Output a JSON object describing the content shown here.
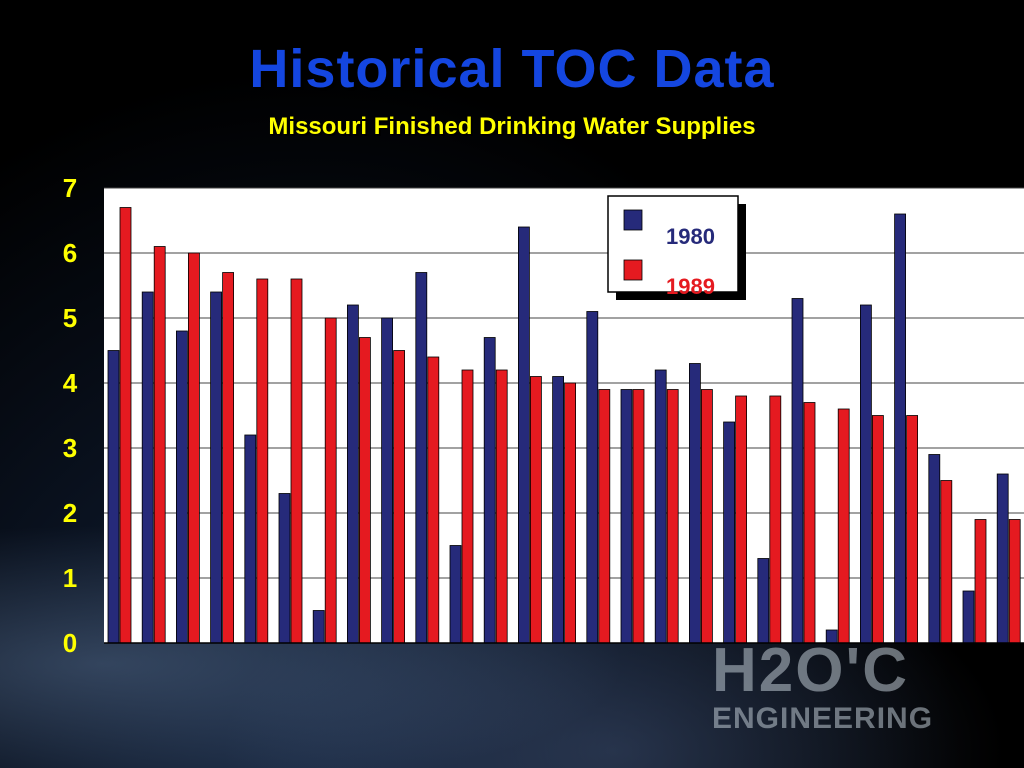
{
  "slide": {
    "title": "Historical TOC Data",
    "subtitle": "Missouri Finished Drinking Water Supplies"
  },
  "logo": {
    "mark": "H2O'C",
    "name": "ENGINEERING"
  },
  "chart_data": {
    "type": "bar",
    "ylabel": "",
    "xlabel": "",
    "ylim": [
      0,
      7
    ],
    "y_ticks": [
      "0",
      "1",
      "2",
      "3",
      "4",
      "5",
      "6",
      "7"
    ],
    "grid": true,
    "legend_placement": "top-center",
    "categories": [
      "",
      "",
      "",
      "",
      "",
      "",
      "",
      "",
      "",
      "",
      "",
      "",
      "",
      "",
      "",
      "",
      "",
      "",
      "",
      "",
      "",
      "",
      "",
      "",
      "",
      "",
      "",
      "",
      ""
    ],
    "series": [
      {
        "name": "1980",
        "color": "#262a7a",
        "values": [
          4.5,
          5.4,
          4.8,
          5.4,
          3.2,
          2.3,
          0.5,
          5.2,
          5.0,
          5.7,
          1.5,
          4.7,
          6.4,
          4.1,
          5.1,
          3.9,
          4.2,
          4.3,
          3.4,
          1.3,
          5.3,
          0.2,
          5.2,
          6.6,
          2.9,
          0.8,
          2.6,
          0.0,
          0.0
        ]
      },
      {
        "name": "1989",
        "color": "#e51a20",
        "values": [
          6.7,
          6.1,
          6.0,
          5.7,
          5.6,
          5.6,
          5.0,
          4.7,
          4.5,
          4.4,
          4.2,
          4.2,
          4.1,
          4.0,
          3.9,
          3.9,
          3.9,
          3.9,
          3.8,
          3.8,
          3.7,
          3.6,
          3.5,
          3.5,
          2.5,
          1.9,
          1.9,
          0.0,
          0.0
        ]
      }
    ]
  },
  "colors": {
    "title": "#1446e0",
    "subtitle": "#ffff00",
    "tick": "#ffff00",
    "series_1980": "#262a7a",
    "series_1989": "#e51a20"
  }
}
